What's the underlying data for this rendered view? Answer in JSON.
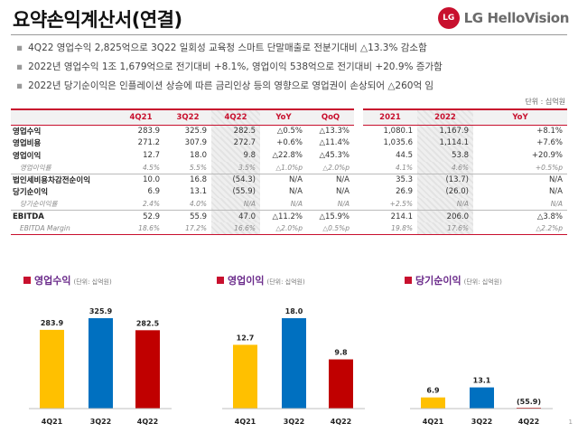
{
  "header": {
    "title": "요약손익계산서(연결)",
    "logo_mark": "LG",
    "logo_text": "LG HelloVision"
  },
  "bullets": [
    "4Q22 영업수익 2,825억으로 3Q22 일회성 교육청 스마트 단말매출로 전분기대비 △13.3% 감소함",
    "2022년 영업수익 1조 1,679억으로 전기대비 +8.1%, 영업이익 538억으로 전기대비 +20.9% 증가함",
    "2022년 당기순이익은 인플레이션 상승에 따른 금리인상 등의 영향으로 영업권이 손상되어 △260억 임"
  ],
  "unit_label": "단위 : 십억원",
  "table": {
    "headers": [
      "4Q21",
      "3Q22",
      "4Q22",
      "YoY",
      "QoQ",
      "2021",
      "2022",
      "YoY"
    ],
    "rows": [
      {
        "label": "영업수익",
        "values": [
          "283.9",
          "325.9",
          "282.5",
          "△0.5%",
          "△13.3%",
          "1,080.1",
          "1,167.9",
          "+8.1%"
        ]
      },
      {
        "label": "영업비용",
        "values": [
          "271.2",
          "307.9",
          "272.7",
          "+0.6%",
          "△11.4%",
          "1,035.6",
          "1,114.1",
          "+7.6%"
        ]
      },
      {
        "label": "영업이익",
        "values": [
          "12.7",
          "18.0",
          "9.8",
          "△22.8%",
          "△45.3%",
          "44.5",
          "53.8",
          "+20.9%"
        ]
      },
      {
        "label": "영업이익률",
        "values": [
          "4.5%",
          "5.5%",
          "3.5%",
          "△1.0%p",
          "△2.0%p",
          "4.1%",
          "4.6%",
          "+0.5%p"
        ]
      },
      {
        "label": "법인세비용차감전순이익",
        "values": [
          "10.0",
          "16.8",
          "(54.3)",
          "N/A",
          "N/A",
          "35.3",
          "(13.7)",
          "N/A"
        ]
      },
      {
        "label": "당기순이익",
        "values": [
          "6.9",
          "13.1",
          "(55.9)",
          "N/A",
          "N/A",
          "26.9",
          "(26.0)",
          "N/A"
        ]
      },
      {
        "label": "당기순이익률",
        "values": [
          "2.4%",
          "4.0%",
          "N/A",
          "N/A",
          "N/A",
          "+2.5%",
          "N/A",
          "N/A"
        ]
      },
      {
        "label": "EBITDA",
        "values": [
          "52.9",
          "55.9",
          "47.0",
          "△11.2%",
          "△15.9%",
          "214.1",
          "206.0",
          "△3.8%"
        ]
      },
      {
        "label": "EBITDA Margin",
        "values": [
          "18.6%",
          "17.2%",
          "16.6%",
          "△2.0%p",
          "△0.5%p",
          "19.8%",
          "17.6%",
          "△2.2%p"
        ]
      }
    ]
  },
  "charts": [
    {
      "title": "영업수익",
      "unit": "(단위: 십억원)",
      "chart_data": {
        "type": "bar",
        "title": "영업수익",
        "categories": [
          "4Q21",
          "3Q22",
          "4Q22"
        ],
        "values": [
          283.9,
          325.9,
          282.5
        ],
        "value_labels": [
          "283.9",
          "325.9",
          "282.5"
        ],
        "colors": [
          "#ffc000",
          "#0070c0",
          "#c00000"
        ]
      }
    },
    {
      "title": "영업이익",
      "unit": "(단위: 십억원)",
      "chart_data": {
        "type": "bar",
        "title": "영업이익",
        "categories": [
          "4Q21",
          "3Q22",
          "4Q22"
        ],
        "values": [
          12.7,
          18.0,
          9.8
        ],
        "value_labels": [
          "12.7",
          "18.0",
          "9.8"
        ],
        "colors": [
          "#ffc000",
          "#0070c0",
          "#c00000"
        ]
      }
    },
    {
      "title": "당기순이익",
      "unit": "(단위: 십억원)",
      "chart_data": {
        "type": "bar",
        "title": "당기순이익",
        "categories": [
          "4Q21",
          "3Q22",
          "4Q22"
        ],
        "values": [
          6.9,
          13.1,
          -55.9
        ],
        "value_labels": [
          "6.9",
          "13.1",
          "(55.9)"
        ],
        "colors": [
          "#ffc000",
          "#0070c0",
          "#c00000"
        ]
      }
    }
  ],
  "page_number": "1"
}
